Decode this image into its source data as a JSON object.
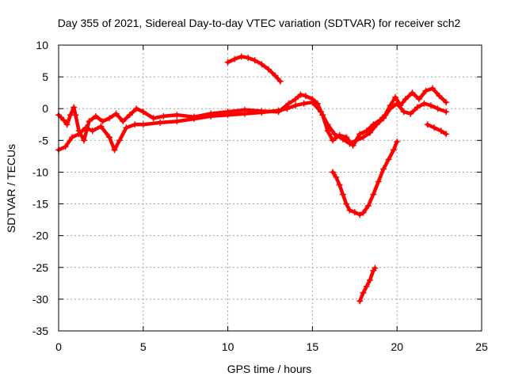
{
  "chart_data": {
    "type": "scatter",
    "title": "Day 355 of 2021, Sidereal Day-to-day VTEC variation (SDTVAR) for receiver sch2",
    "xlabel": "GPS time / hours",
    "ylabel": "SDTVAR / TECUs",
    "xlim": [
      0,
      25
    ],
    "ylim": [
      -35,
      10
    ],
    "xticks": [
      0,
      5,
      10,
      15,
      20,
      25
    ],
    "yticks": [
      -35,
      -30,
      -25,
      -20,
      -15,
      -10,
      -5,
      0,
      5,
      10
    ],
    "grid": true,
    "marker": "plus",
    "series_color": "#ff0000",
    "series": [
      {
        "name": "band-upper",
        "points": [
          [
            0.0,
            -1.0
          ],
          [
            0.3,
            -1.8
          ],
          [
            0.5,
            -2.5
          ],
          [
            0.7,
            -1.0
          ],
          [
            0.9,
            0.2
          ],
          [
            1.0,
            -1.0
          ],
          [
            1.2,
            -3.5
          ],
          [
            1.5,
            -5.0
          ],
          [
            1.8,
            -2.0
          ],
          [
            2.2,
            -1.2
          ],
          [
            2.6,
            -2.0
          ],
          [
            3.0,
            -1.5
          ],
          [
            3.4,
            -0.8
          ],
          [
            3.8,
            -2.0
          ],
          [
            4.2,
            -1.0
          ],
          [
            4.6,
            0.0
          ],
          [
            5.0,
            -0.5
          ],
          [
            5.6,
            -1.5
          ],
          [
            6.2,
            -1.2
          ],
          [
            7.0,
            -1.0
          ],
          [
            8.0,
            -1.3
          ],
          [
            9.0,
            -0.8
          ],
          [
            10.0,
            -0.5
          ],
          [
            11.0,
            -0.2
          ],
          [
            12.0,
            -0.4
          ],
          [
            13.0,
            -0.5
          ],
          [
            13.6,
            0.8
          ],
          [
            14.0,
            1.5
          ],
          [
            14.3,
            2.2
          ],
          [
            14.6,
            2.0
          ],
          [
            15.0,
            1.5
          ],
          [
            15.3,
            0.8
          ],
          [
            15.6,
            -1.0
          ],
          [
            15.9,
            -3.5
          ],
          [
            16.2,
            -5.0
          ],
          [
            16.6,
            -4.2
          ],
          [
            17.0,
            -4.5
          ],
          [
            17.4,
            -5.8
          ],
          [
            17.8,
            -4.0
          ],
          [
            18.2,
            -3.5
          ],
          [
            18.6,
            -2.5
          ],
          [
            19.0,
            -1.8
          ],
          [
            19.3,
            -1.0
          ],
          [
            19.6,
            0.5
          ],
          [
            19.9,
            1.8
          ],
          [
            20.2,
            0.5
          ],
          [
            20.5,
            1.5
          ],
          [
            20.9,
            2.5
          ],
          [
            21.3,
            1.5
          ],
          [
            21.7,
            2.8
          ],
          [
            22.1,
            3.2
          ],
          [
            22.5,
            2.0
          ],
          [
            22.9,
            1.0
          ]
        ]
      },
      {
        "name": "band-lower",
        "points": [
          [
            0.0,
            -6.5
          ],
          [
            0.4,
            -6.0
          ],
          [
            0.8,
            -4.5
          ],
          [
            1.2,
            -4.0
          ],
          [
            1.6,
            -3.0
          ],
          [
            2.0,
            -3.5
          ],
          [
            2.5,
            -2.8
          ],
          [
            3.0,
            -4.5
          ],
          [
            3.3,
            -6.5
          ],
          [
            3.6,
            -5.0
          ],
          [
            4.0,
            -3.0
          ],
          [
            4.5,
            -2.5
          ],
          [
            5.0,
            -2.5
          ],
          [
            6.0,
            -2.2
          ],
          [
            7.0,
            -2.0
          ],
          [
            8.0,
            -1.6
          ],
          [
            9.0,
            -1.2
          ],
          [
            10.0,
            -1.0
          ],
          [
            11.0,
            -0.8
          ],
          [
            12.0,
            -0.6
          ],
          [
            13.0,
            -0.3
          ],
          [
            13.5,
            0.0
          ],
          [
            14.0,
            0.5
          ],
          [
            14.5,
            0.8
          ],
          [
            15.0,
            1.0
          ],
          [
            15.5,
            -0.5
          ],
          [
            15.9,
            -2.5
          ],
          [
            16.3,
            -4.0
          ],
          [
            16.8,
            -4.8
          ],
          [
            17.2,
            -5.5
          ],
          [
            17.6,
            -5.0
          ],
          [
            18.0,
            -4.5
          ],
          [
            18.4,
            -3.8
          ],
          [
            18.8,
            -2.5
          ],
          [
            19.2,
            -1.5
          ],
          [
            19.6,
            0.0
          ],
          [
            20.0,
            0.8
          ],
          [
            20.4,
            -0.5
          ],
          [
            20.8,
            -0.8
          ],
          [
            21.2,
            0.2
          ],
          [
            21.6,
            0.8
          ],
          [
            22.0,
            0.5
          ],
          [
            22.4,
            0.0
          ],
          [
            22.9,
            -0.5
          ]
        ]
      },
      {
        "name": "segment-10-13h",
        "points": [
          [
            10.0,
            7.3
          ],
          [
            10.4,
            7.8
          ],
          [
            10.8,
            8.2
          ],
          [
            11.2,
            8.0
          ],
          [
            11.6,
            7.6
          ],
          [
            12.0,
            7.0
          ],
          [
            12.4,
            6.2
          ],
          [
            12.8,
            5.2
          ],
          [
            13.1,
            4.3
          ]
        ]
      },
      {
        "name": "segment-late",
        "points": [
          [
            21.8,
            -2.5
          ],
          [
            22.2,
            -3.0
          ],
          [
            22.6,
            -3.5
          ],
          [
            22.9,
            -4.0
          ]
        ]
      },
      {
        "name": "trough",
        "points": [
          [
            16.2,
            -10.0
          ],
          [
            16.4,
            -10.8
          ],
          [
            16.6,
            -12.0
          ],
          [
            16.8,
            -13.5
          ],
          [
            17.0,
            -15.0
          ],
          [
            17.2,
            -16.0
          ],
          [
            17.5,
            -16.3
          ],
          [
            17.8,
            -16.7
          ],
          [
            18.0,
            -16.4
          ],
          [
            18.3,
            -15.3
          ],
          [
            18.6,
            -13.5
          ],
          [
            18.9,
            -11.5
          ],
          [
            19.2,
            -9.5
          ],
          [
            19.5,
            -8.0
          ],
          [
            19.8,
            -6.5
          ],
          [
            20.0,
            -5.2
          ]
        ]
      },
      {
        "name": "segment-minus30",
        "points": [
          [
            17.8,
            -30.3
          ],
          [
            18.0,
            -29.0
          ],
          [
            18.2,
            -28.0
          ],
          [
            18.4,
            -27.0
          ],
          [
            18.6,
            -25.5
          ],
          [
            18.7,
            -25.1
          ]
        ]
      }
    ]
  }
}
